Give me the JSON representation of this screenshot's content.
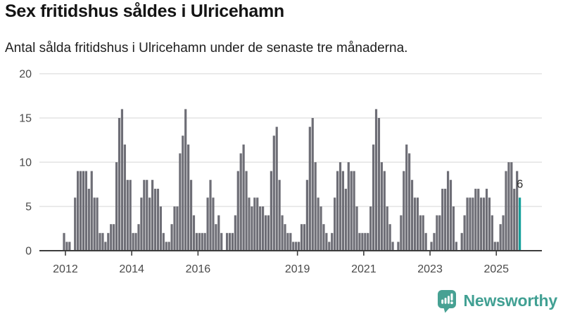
{
  "title": "Sex fritidshus såldes i Ulricehamn",
  "subtitle": "Antal sålda fritidshus i Ulricehamn under de senaste tre månaderna.",
  "chart_data": {
    "type": "bar",
    "title": "Sex fritidshus såldes i Ulricehamn",
    "xlabel": "",
    "ylabel": "",
    "x_start_month": "2011-12",
    "x_end_month": "2025-09",
    "frequency": "monthly",
    "values": [
      2,
      1,
      1,
      0,
      6,
      9,
      9,
      9,
      9,
      7,
      9,
      6,
      6,
      2,
      2,
      1,
      2,
      3,
      3,
      10,
      15,
      16,
      12,
      8,
      8,
      2,
      2,
      3,
      6,
      8,
      8,
      6,
      8,
      7,
      7,
      5,
      2,
      1,
      1,
      3,
      5,
      5,
      11,
      13,
      16,
      12,
      8,
      4,
      2,
      2,
      2,
      2,
      6,
      8,
      6,
      3,
      4,
      2,
      0,
      2,
      2,
      2,
      4,
      9,
      11,
      12,
      9,
      6,
      5,
      6,
      6,
      5,
      5,
      4,
      4,
      9,
      13,
      14,
      8,
      4,
      3,
      2,
      2,
      1,
      1,
      1,
      3,
      3,
      8,
      14,
      15,
      10,
      6,
      5,
      3,
      2,
      1,
      2,
      6,
      9,
      10,
      9,
      7,
      10,
      9,
      9,
      5,
      2,
      2,
      2,
      2,
      5,
      12,
      16,
      15,
      10,
      9,
      5,
      3,
      1,
      0,
      1,
      4,
      9,
      12,
      11,
      8,
      6,
      6,
      4,
      4,
      2,
      0,
      1,
      2,
      4,
      4,
      7,
      7,
      9,
      8,
      5,
      1,
      0,
      2,
      4,
      6,
      6,
      6,
      7,
      7,
      6,
      6,
      7,
      6,
      4,
      1,
      1,
      3,
      4,
      9,
      10,
      10,
      7,
      9,
      6
    ],
    "yticks": [
      0,
      5,
      10,
      15,
      20
    ],
    "ylim": [
      0,
      20
    ],
    "xticks": [
      2012,
      2014,
      2016,
      2019,
      2021,
      2023,
      2025
    ],
    "grid": true,
    "legend": "none",
    "bar_color": "#6e6e76",
    "highlight_last": {
      "value": 6,
      "label": "6",
      "color": "#14a09b"
    },
    "axis_color": "#3d3d3d",
    "grid_color": "#e3e3e3"
  },
  "logo": {
    "text": "Newsworthy",
    "color": "#41a093",
    "icon": "newsworthy-bubble-barchart-icon"
  }
}
